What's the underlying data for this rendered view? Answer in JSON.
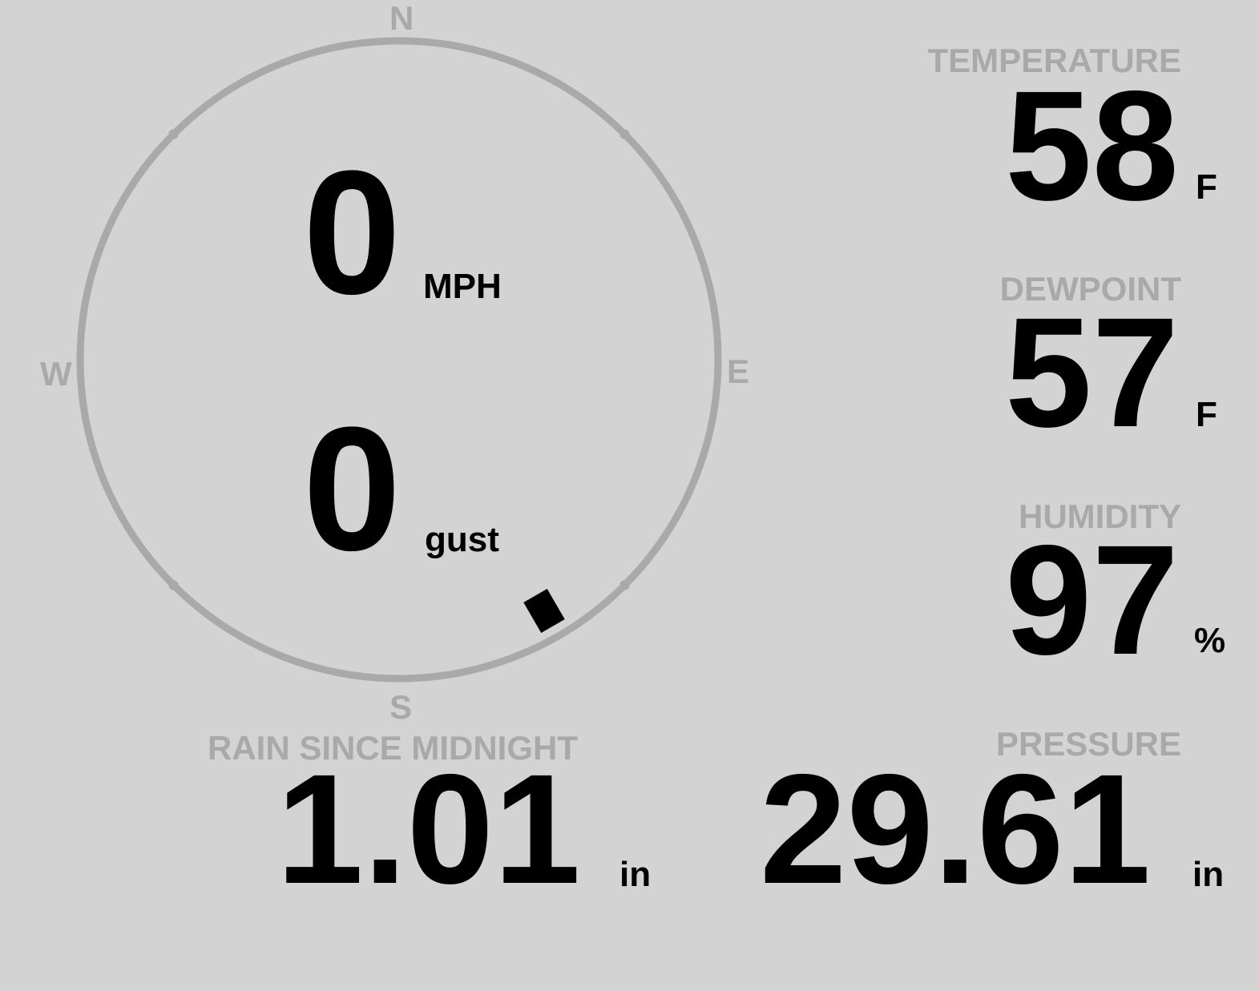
{
  "wind": {
    "compass": {
      "n": "N",
      "e": "E",
      "s": "S",
      "w": "W"
    },
    "speed": "0",
    "speed_unit": "MPH",
    "gust": "0",
    "gust_unit": "gust",
    "direction_deg": 150
  },
  "temperature": {
    "label": "TEMPERATURE",
    "value": "58",
    "unit": "F"
  },
  "dewpoint": {
    "label": "DEWPOINT",
    "value": "57",
    "unit": "F"
  },
  "humidity": {
    "label": "HUMIDITY",
    "value": "97",
    "unit": "%"
  },
  "rain": {
    "label": "RAIN SINCE MIDNIGHT",
    "value": "1.01",
    "unit": "in"
  },
  "pressure": {
    "label": "PRESSURE",
    "value": "29.61",
    "unit": "in"
  },
  "colors": {
    "background": "#d3d3d3",
    "ring": "#a9a9a9",
    "label": "#a9a9a9",
    "value": "#000000"
  }
}
